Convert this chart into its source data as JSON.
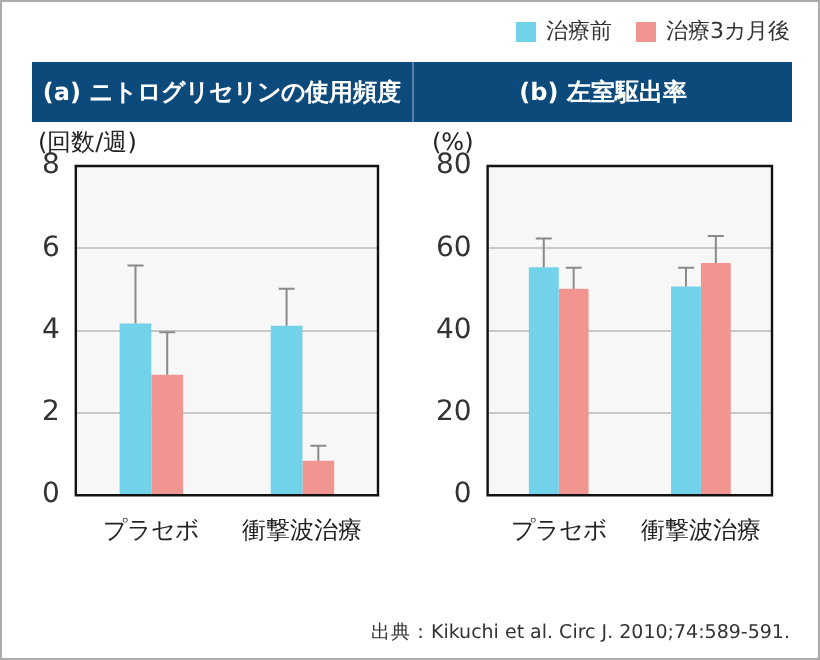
{
  "chart_data": [
    {
      "type": "bar",
      "title": "(a) ニトログリセリンの使用頻度",
      "ylabel": "(回数/週)",
      "categories": [
        "プラセボ",
        "衝撃波治療"
      ],
      "ylim": [
        0,
        8
      ],
      "yticks": [
        0,
        2,
        4,
        6,
        8
      ],
      "grid": "y",
      "legend": "top right",
      "series": [
        {
          "name": "治療前",
          "color": "#72d2ea",
          "values": [
            4.17,
            4.12
          ],
          "errors": [
            [
              4.17,
              5.58
            ],
            [
              4.12,
              5.02
            ]
          ]
        },
        {
          "name": "治療3カ月後",
          "color": "#f09590",
          "values": [
            2.93,
            0.84
          ],
          "errors": [
            [
              2.93,
              3.96
            ],
            [
              0.84,
              1.2
            ]
          ]
        }
      ]
    },
    {
      "type": "bar",
      "title": "(b) 左室駆出率",
      "ylabel": "(%)",
      "categories": [
        "プラセボ",
        "衝撃波治療"
      ],
      "ylim": [
        0,
        80
      ],
      "yticks": [
        0,
        20,
        40,
        60,
        80
      ],
      "grid": "y",
      "annotations": [
        "出典：Kikuchi et al. Circ J.  2010;74:589-591."
      ],
      "series": [
        {
          "color": "#72d2ea",
          "values": [
            55.4,
            50.7
          ],
          "errors": [
            [
              55.4,
              62.4
            ],
            [
              50.7,
              55.3
            ]
          ]
        },
        {
          "color": "#f09590",
          "values": [
            50.2,
            56.4
          ],
          "errors": [
            [
              50.2,
              55.3
            ],
            [
              56.4,
              63.0
            ]
          ]
        }
      ]
    }
  ]
}
